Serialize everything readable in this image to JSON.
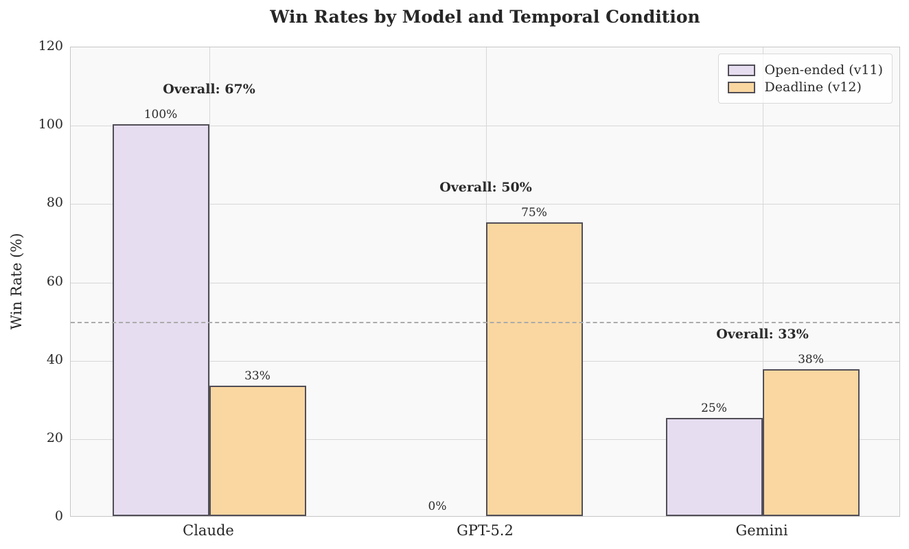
{
  "chart_data": {
    "type": "bar",
    "title": "Win Rates by Model and Temporal Condition",
    "ylabel": "Win Rate (%)",
    "xlabel": "",
    "ylim": [
      0,
      120
    ],
    "yticks": [
      0,
      20,
      40,
      60,
      80,
      100,
      120
    ],
    "categories": [
      "Claude",
      "GPT-5.2",
      "Gemini"
    ],
    "series": [
      {
        "name": "Open-ended (v11)",
        "values": [
          100,
          0,
          25
        ],
        "bar_labels": [
          "100%",
          "0%",
          "25%"
        ],
        "fill": "#e6ddf0",
        "edge": "#514e57"
      },
      {
        "name": "Deadline (v12)",
        "values": [
          33.3,
          75,
          37.5
        ],
        "bar_labels": [
          "33%",
          "75%",
          "38%"
        ],
        "fill": "#fad7a0",
        "edge": "#514e57"
      }
    ],
    "group_annotations": [
      "Overall: 67%",
      "Overall: 50%",
      "Overall: 33%"
    ],
    "reference_line": {
      "value": 50,
      "style": "dashed",
      "color": "#ababab"
    },
    "legend": {
      "position": "upper right",
      "entries": [
        "Open-ended (v11)",
        "Deadline (v12)"
      ]
    },
    "grid": true,
    "colors": {
      "figure_background": "#ffffff",
      "plot_background": "#f9f9f9",
      "gridline": "#d7d7d7",
      "spine": "#c6c6c6",
      "text": "#262626",
      "bar_open_ended": "#e6ddf0",
      "bar_deadline": "#fad7a0",
      "bar_edge": "#514e57"
    }
  }
}
